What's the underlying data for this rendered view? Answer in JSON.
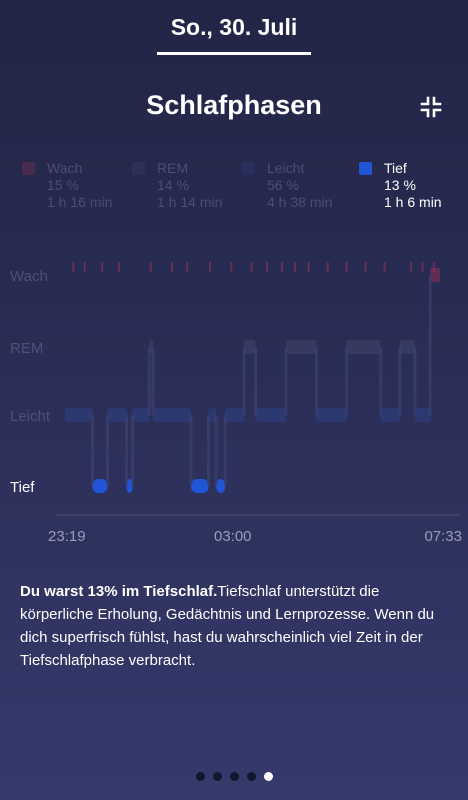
{
  "header": {
    "date": "So., 30. Juli",
    "title": "Schlafphasen"
  },
  "colors": {
    "wach": "#b6325c",
    "rem": "#484d70",
    "leicht": "#2f4597",
    "tief": "#1f55d6"
  },
  "legend": [
    {
      "name": "Wach",
      "percent": "15 %",
      "duration": "1 h 16 min",
      "active": false
    },
    {
      "name": "REM",
      "percent": "14 %",
      "duration": "1 h 14 min",
      "active": false
    },
    {
      "name": "Leicht",
      "percent": "56 %",
      "duration": "4 h 38 min",
      "active": false
    },
    {
      "name": "Tief",
      "percent": "13 %",
      "duration": "1 h 6 min",
      "active": true
    }
  ],
  "chart_data": {
    "type": "area",
    "stages": [
      "Wach",
      "REM",
      "Leicht",
      "Tief"
    ],
    "x_ticks": [
      "23:19",
      "03:00",
      "07:33"
    ],
    "x_range": [
      "23:19",
      "07:33"
    ],
    "highlighted_stage": "Tief",
    "segments": [
      {
        "start": "23:19",
        "end": "23:55",
        "stage": "Leicht"
      },
      {
        "start": "23:55",
        "end": "00:15",
        "stage": "Tief"
      },
      {
        "start": "00:15",
        "end": "00:40",
        "stage": "Leicht"
      },
      {
        "start": "00:40",
        "end": "00:48",
        "stage": "Tief"
      },
      {
        "start": "00:48",
        "end": "01:10",
        "stage": "Leicht"
      },
      {
        "start": "01:10",
        "end": "01:15",
        "stage": "REM"
      },
      {
        "start": "01:15",
        "end": "02:05",
        "stage": "Leicht"
      },
      {
        "start": "02:05",
        "end": "02:28",
        "stage": "Tief"
      },
      {
        "start": "02:28",
        "end": "02:38",
        "stage": "Leicht"
      },
      {
        "start": "02:38",
        "end": "02:50",
        "stage": "Tief"
      },
      {
        "start": "02:50",
        "end": "03:15",
        "stage": "Leicht"
      },
      {
        "start": "03:15",
        "end": "03:30",
        "stage": "REM"
      },
      {
        "start": "03:30",
        "end": "04:10",
        "stage": "Leicht"
      },
      {
        "start": "04:10",
        "end": "04:50",
        "stage": "REM"
      },
      {
        "start": "04:50",
        "end": "05:30",
        "stage": "Leicht"
      },
      {
        "start": "05:30",
        "end": "06:15",
        "stage": "REM"
      },
      {
        "start": "06:15",
        "end": "06:40",
        "stage": "Leicht"
      },
      {
        "start": "06:40",
        "end": "07:00",
        "stage": "REM"
      },
      {
        "start": "07:00",
        "end": "07:20",
        "stage": "Leicht"
      },
      {
        "start": "07:20",
        "end": "07:33",
        "stage": "Wach"
      }
    ],
    "wake_marks": [
      "23:30",
      "23:45",
      "00:08",
      "00:30",
      "01:12",
      "01:40",
      "02:00",
      "02:30",
      "02:58",
      "03:25",
      "03:45",
      "04:05",
      "04:22",
      "04:40",
      "05:05",
      "05:30",
      "05:55",
      "06:20",
      "06:55",
      "07:10",
      "07:25"
    ]
  },
  "description": {
    "bold": "Du warst 13% im Tiefschlaf.",
    "text": "Tiefschlaf unterstützt die körperliche Erholung, Gedächtnis und Lernprozesse. Wenn du dich superfrisch fühlst, hast du wahrscheinlich viel Zeit in der Tiefschlafphase verbracht."
  },
  "pagination": {
    "count": 5,
    "active": 4
  }
}
